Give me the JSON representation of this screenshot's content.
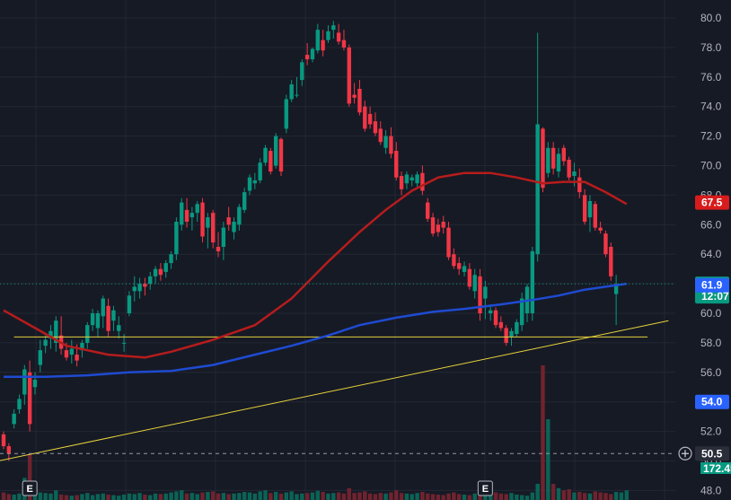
{
  "chart_data": {
    "type": "candlestick",
    "y_axis": {
      "ticks": [
        "80.0",
        "78.0",
        "76.0",
        "74.0",
        "72.0",
        "70.0",
        "68.0",
        "66.0",
        "64.0",
        "62.0",
        "60.0",
        "58.0",
        "56.0",
        "54.0",
        "52.0",
        "50.0",
        "48.0"
      ],
      "ylim": [
        47.6,
        80.5
      ],
      "grid": true,
      "side": "right"
    },
    "candles": [
      [
        51.8,
        52.0,
        50.8,
        51.0
      ],
      [
        51.0,
        51.2,
        50.0,
        50.5
      ],
      [
        52.5,
        53.5,
        52.2,
        53.2
      ],
      [
        53.5,
        54.5,
        53.2,
        54.2
      ],
      [
        54.5,
        56.5,
        53.8,
        56.2
      ],
      [
        56.0,
        56.8,
        52.0,
        52.5
      ],
      [
        55.0,
        56.0,
        54.5,
        55.5
      ],
      [
        56.5,
        58.2,
        56.0,
        57.5
      ],
      [
        57.8,
        58.5,
        57.3,
        58.2
      ],
      [
        58.3,
        59.2,
        57.6,
        58.8
      ],
      [
        58.0,
        59.8,
        57.4,
        59.5
      ],
      [
        58.5,
        59.8,
        57.2,
        57.6
      ],
      [
        57.5,
        58.0,
        56.8,
        57.0
      ],
      [
        57.2,
        58.2,
        56.6,
        57.6
      ],
      [
        57.2,
        57.9,
        56.4,
        56.8
      ],
      [
        57.5,
        58.2,
        57.0,
        58.0
      ],
      [
        58.0,
        59.4,
        57.6,
        59.2
      ],
      [
        59.2,
        60.3,
        58.8,
        60.0
      ],
      [
        59.0,
        60.2,
        58.4,
        60.0
      ],
      [
        59.8,
        61.2,
        59.0,
        61.0
      ],
      [
        60.5,
        61.0,
        58.4,
        58.8
      ],
      [
        59.5,
        60.5,
        58.8,
        60.2
      ],
      [
        58.8,
        59.8,
        58.3,
        59.2
      ],
      [
        58.0,
        58.6,
        57.4,
        58.0
      ],
      [
        60.0,
        61.5,
        59.8,
        61.2
      ],
      [
        61.5,
        62.5,
        60.8,
        61.8
      ],
      [
        61.5,
        62.4,
        61.0,
        62.0
      ],
      [
        62.0,
        62.4,
        61.2,
        61.8
      ],
      [
        62.0,
        62.8,
        61.6,
        62.5
      ],
      [
        62.5,
        63.2,
        62.0,
        63.0
      ],
      [
        63.0,
        63.4,
        62.2,
        62.6
      ],
      [
        62.8,
        63.6,
        62.4,
        63.4
      ],
      [
        63.4,
        64.2,
        63.0,
        64.0
      ],
      [
        64.0,
        66.5,
        63.6,
        66.2
      ],
      [
        66.0,
        67.8,
        65.6,
        67.5
      ],
      [
        67.0,
        67.8,
        65.8,
        66.2
      ],
      [
        66.5,
        67.2,
        65.6,
        66.8
      ],
      [
        66.8,
        67.6,
        66.2,
        67.4
      ],
      [
        67.5,
        67.8,
        64.8,
        65.2
      ],
      [
        65.8,
        66.8,
        64.4,
        66.5
      ],
      [
        66.8,
        67.0,
        64.4,
        64.8
      ],
      [
        64.5,
        65.5,
        63.8,
        64.2
      ],
      [
        64.5,
        66.2,
        63.6,
        65.8
      ],
      [
        66.5,
        67.2,
        65.6,
        66.0
      ],
      [
        65.5,
        66.5,
        65.0,
        66.2
      ],
      [
        66.0,
        67.4,
        65.6,
        67.2
      ],
      [
        67.0,
        68.5,
        66.8,
        68.2
      ],
      [
        68.3,
        69.4,
        68.0,
        69.2
      ],
      [
        68.8,
        69.5,
        68.4,
        69.0
      ],
      [
        69.0,
        70.5,
        68.8,
        70.2
      ],
      [
        70.2,
        71.4,
        70.0,
        71.2
      ],
      [
        71.0,
        71.2,
        69.4,
        69.6
      ],
      [
        70.0,
        72.2,
        69.8,
        72.0
      ],
      [
        71.8,
        71.9,
        69.3,
        69.6
      ],
      [
        72.5,
        74.8,
        72.2,
        74.5
      ],
      [
        74.5,
        75.8,
        74.3,
        75.5
      ],
      [
        74.8,
        76.0,
        74.6,
        74.8
      ],
      [
        75.8,
        77.2,
        75.4,
        77.0
      ],
      [
        77.5,
        78.3,
        76.8,
        77.2
      ],
      [
        77.2,
        78.0,
        77.0,
        77.9
      ],
      [
        77.8,
        79.6,
        77.6,
        79.2
      ],
      [
        78.5,
        79.2,
        77.4,
        77.8
      ],
      [
        78.5,
        79.5,
        78.3,
        79.1
      ],
      [
        79.2,
        79.8,
        78.6,
        79.5
      ],
      [
        79.0,
        79.6,
        78.2,
        78.4
      ],
      [
        78.5,
        79.2,
        77.8,
        78.0
      ],
      [
        78.0,
        78.2,
        74.0,
        74.2
      ],
      [
        74.8,
        75.6,
        74.2,
        74.6
      ],
      [
        75.2,
        75.8,
        73.4,
        73.6
      ],
      [
        74.0,
        74.4,
        72.3,
        72.5
      ],
      [
        73.5,
        74.0,
        72.5,
        72.8
      ],
      [
        73.0,
        73.6,
        72.0,
        72.2
      ],
      [
        72.5,
        73.0,
        71.4,
        71.6
      ],
      [
        71.2,
        72.4,
        70.8,
        72.0
      ],
      [
        72.0,
        72.6,
        70.5,
        70.8
      ],
      [
        71.0,
        71.6,
        69.0,
        69.2
      ],
      [
        69.3,
        69.6,
        68.0,
        68.4
      ],
      [
        68.8,
        69.6,
        68.4,
        69.4
      ],
      [
        69.0,
        69.4,
        68.6,
        69.2
      ],
      [
        68.8,
        69.6,
        68.5,
        69.4
      ],
      [
        69.5,
        70.0,
        68.0,
        68.3
      ],
      [
        67.5,
        67.8,
        66.2,
        66.4
      ],
      [
        66.5,
        66.8,
        65.2,
        65.4
      ],
      [
        66.0,
        66.4,
        65.2,
        65.5
      ],
      [
        66.2,
        66.6,
        65.4,
        65.8
      ],
      [
        65.8,
        66.2,
        63.6,
        63.8
      ],
      [
        64.0,
        64.4,
        63.0,
        63.2
      ],
      [
        63.4,
        63.8,
        62.6,
        63.0
      ],
      [
        62.8,
        63.5,
        62.5,
        63.2
      ],
      [
        63.0,
        63.4,
        61.6,
        61.8
      ],
      [
        61.5,
        63.0,
        61.0,
        62.6
      ],
      [
        62.5,
        63.0,
        59.5,
        60.0
      ],
      [
        61.0,
        62.2,
        59.6,
        61.8
      ],
      [
        60.0,
        60.6,
        59.5,
        60.2
      ],
      [
        60.2,
        60.4,
        59.0,
        59.2
      ],
      [
        59.4,
        59.8,
        58.8,
        59.0
      ],
      [
        59.0,
        59.2,
        57.8,
        58.0
      ],
      [
        58.4,
        59.0,
        57.8,
        58.8
      ],
      [
        58.6,
        59.6,
        58.4,
        59.4
      ],
      [
        59.2,
        61.4,
        58.8,
        61.0
      ],
      [
        60.0,
        62.0,
        59.4,
        61.8
      ],
      [
        60.0,
        64.5,
        59.5,
        64.2
      ],
      [
        64.0,
        79.0,
        63.5,
        72.8
      ],
      [
        72.5,
        72.6,
        68.2,
        68.5
      ],
      [
        69.5,
        71.6,
        69.2,
        71.2
      ],
      [
        71.2,
        71.6,
        69.4,
        69.8
      ],
      [
        69.6,
        71.2,
        69.2,
        70.8
      ],
      [
        71.2,
        71.4,
        70.0,
        70.3
      ],
      [
        70.4,
        70.6,
        69.0,
        69.2
      ],
      [
        69.3,
        70.2,
        68.6,
        69.6
      ],
      [
        69.2,
        69.8,
        67.8,
        68.2
      ],
      [
        68.0,
        68.4,
        66.0,
        66.2
      ],
      [
        66.5,
        68.0,
        65.5,
        67.6
      ],
      [
        67.4,
        67.6,
        65.6,
        65.8
      ],
      [
        65.8,
        66.2,
        65.4,
        65.6
      ],
      [
        65.4,
        65.6,
        63.8,
        64.0
      ],
      [
        64.5,
        64.8,
        62.2,
        62.5
      ],
      [
        61.3,
        62.6,
        59.2,
        62.0
      ]
    ],
    "volumes": [
      14,
      11,
      10,
      12,
      41,
      85,
      16,
      14,
      13,
      12,
      18,
      10,
      9,
      8,
      9,
      11,
      13,
      9,
      11,
      12,
      10,
      9,
      8,
      10,
      12,
      11,
      13,
      10,
      9,
      12,
      11,
      12,
      14,
      16,
      18,
      12,
      13,
      11,
      14,
      15,
      16,
      12,
      13,
      11,
      12,
      13,
      15,
      14,
      12,
      16,
      18,
      13,
      15,
      12,
      14,
      16,
      11,
      12,
      13,
      14,
      17,
      15,
      12,
      13,
      14,
      12,
      22,
      13,
      14,
      16,
      12,
      11,
      13,
      12,
      14,
      18,
      13,
      12,
      11,
      13,
      15,
      12,
      11,
      10,
      9,
      12,
      14,
      11,
      10,
      9,
      12,
      13,
      11,
      20,
      14,
      12,
      11,
      13,
      10,
      9,
      8,
      14,
      30,
      250,
      150,
      30,
      22,
      18,
      20,
      14,
      15,
      13,
      12,
      16,
      14,
      13,
      11,
      15,
      14,
      18
    ],
    "volume_peak_label": "172.45",
    "moving_averages": [
      {
        "color": "#b71c1c",
        "values": [
          [
            0,
            60.2
          ],
          [
            6,
            59.0
          ],
          [
            12,
            57.8
          ],
          [
            20,
            57.2
          ],
          [
            27,
            57.0
          ],
          [
            32,
            57.4
          ],
          [
            40,
            58.2
          ],
          [
            48,
            59.2
          ],
          [
            55,
            61.0
          ],
          [
            62,
            63.5
          ],
          [
            68,
            65.5
          ],
          [
            73,
            67.0
          ],
          [
            78,
            68.3
          ],
          [
            83,
            69.2
          ],
          [
            88,
            69.5
          ],
          [
            93,
            69.5
          ],
          [
            98,
            69.2
          ],
          [
            103,
            68.8
          ],
          [
            107,
            68.9
          ],
          [
            111,
            68.9
          ],
          [
            115,
            68.2
          ],
          [
            119,
            67.4
          ]
        ]
      },
      {
        "color": "#1e4bd2",
        "values": [
          [
            0,
            55.7
          ],
          [
            8,
            55.7
          ],
          [
            16,
            55.8
          ],
          [
            24,
            56.0
          ],
          [
            32,
            56.1
          ],
          [
            40,
            56.5
          ],
          [
            48,
            57.2
          ],
          [
            55,
            57.8
          ],
          [
            62,
            58.5
          ],
          [
            68,
            59.2
          ],
          [
            75,
            59.7
          ],
          [
            82,
            60.1
          ],
          [
            88,
            60.3
          ],
          [
            95,
            60.6
          ],
          [
            101,
            60.9
          ],
          [
            106,
            61.2
          ],
          [
            111,
            61.6
          ],
          [
            115,
            61.8
          ],
          [
            119,
            62.0
          ]
        ]
      }
    ],
    "trendlines": [
      {
        "color": "#e6d23a",
        "from": [
          -1,
          50.0
        ],
        "to": [
          127,
          59.5
        ]
      },
      {
        "color": "#e6d23a",
        "from": [
          2,
          58.4
        ],
        "to": [
          123,
          58.4
        ]
      }
    ],
    "dashed_price_line": 50.5,
    "last_price_line": 62.0,
    "price_badges": [
      {
        "label": "67.5",
        "value": 67.5,
        "color": "#d81b1b"
      },
      {
        "label": "62.0",
        "sub": "12:07",
        "value": 62.0,
        "color": "#089981"
      },
      {
        "label": "61.9",
        "value": 61.9,
        "color": "#2962ff"
      },
      {
        "label": "54.0",
        "value": 54.0,
        "color": "#2962ff"
      },
      {
        "label": "50.5",
        "value": 50.5,
        "color": "#2a2e39"
      }
    ],
    "event_markers": [
      {
        "label": "E",
        "index": 5
      },
      {
        "label": "E",
        "index": 92
      }
    ],
    "colors": {
      "up": "#089981",
      "down": "#f23645",
      "grid": "#232733",
      "background": "#161a25"
    }
  }
}
